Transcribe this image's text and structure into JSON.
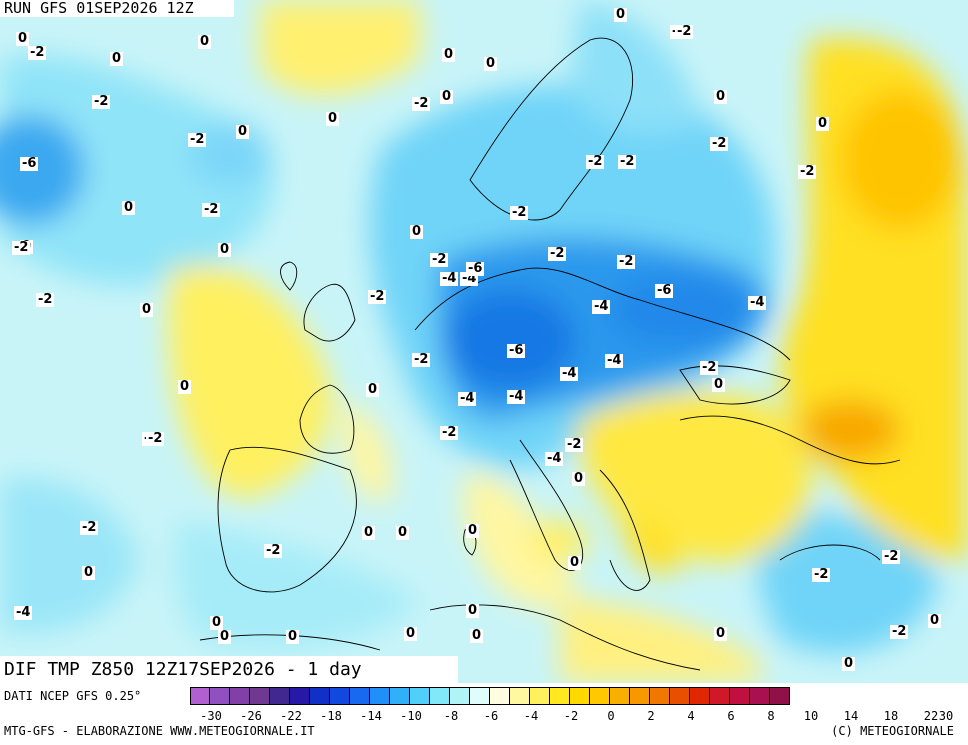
{
  "run_title": "RUN GFS 01SEP2026 12Z",
  "var_title": "DIF TMP Z850 12Z17SEP2026 - 1 day",
  "source": "DATI NCEP GFS 0.25°",
  "credit_left": "MTG-GFS - ELABORAZIONE WWW.METEOGIORNALE.IT",
  "credit_right": "(C) METEOGIORNALE",
  "colorbar": {
    "colors": [
      "#b060d0",
      "#9050c0",
      "#8040a8",
      "#703890",
      "#402890",
      "#2818a8",
      "#1030c8",
      "#1048e0",
      "#1868f0",
      "#2090f8",
      "#30b0f8",
      "#50d0f8",
      "#80e8f8",
      "#b0f4f8",
      "#e0fcfc",
      "#fffce0",
      "#fff8a0",
      "#fff060",
      "#ffe820",
      "#ffd800",
      "#ffc800",
      "#f8b000",
      "#f89800",
      "#f07800",
      "#e85000",
      "#e02800",
      "#d01828",
      "#c01040",
      "#a81050",
      "#901048"
    ],
    "ticks": [
      "-30",
      "-26",
      "-22",
      "-18",
      "-14",
      "-10",
      "-8",
      "-6",
      "-4",
      "-2",
      "0",
      "2",
      "4",
      "6",
      "8",
      "10",
      "14",
      "18",
      "22",
      "30"
    ]
  },
  "labels": [
    {
      "t": "0"
    },
    {
      "t": "-2"
    },
    {
      "t": "0"
    },
    {
      "t": "0"
    },
    {
      "t": "-2"
    },
    {
      "t": "0"
    },
    {
      "t": "0"
    },
    {
      "t": "-2"
    },
    {
      "t": "0"
    },
    {
      "t": "-2"
    },
    {
      "t": "0"
    },
    {
      "t": "0"
    },
    {
      "t": "0"
    },
    {
      "t": "-2"
    },
    {
      "t": "0"
    },
    {
      "t": "-2"
    },
    {
      "t": "-2"
    },
    {
      "t": "0"
    },
    {
      "t": "-2"
    },
    {
      "t": "0"
    },
    {
      "t": "-6"
    },
    {
      "t": "0"
    },
    {
      "t": "-2"
    },
    {
      "t": "-2"
    },
    {
      "t": "-2"
    },
    {
      "t": "-2"
    },
    {
      "t": "-2"
    },
    {
      "t": "-4"
    },
    {
      "t": "0"
    },
    {
      "t": "-2"
    },
    {
      "t": "-2"
    },
    {
      "t": "-2"
    },
    {
      "t": "-6"
    },
    {
      "t": "-4"
    },
    {
      "t": "-2"
    },
    {
      "t": "-2"
    },
    {
      "t": "-4"
    },
    {
      "t": "-6"
    },
    {
      "t": "-4"
    },
    {
      "t": "0"
    },
    {
      "t": "-2"
    },
    {
      "t": "-4"
    },
    {
      "t": "-6"
    },
    {
      "t": "-2"
    },
    {
      "t": "-4"
    },
    {
      "t": "-4"
    },
    {
      "t": "0"
    },
    {
      "t": "0"
    },
    {
      "t": "-4"
    },
    {
      "t": "-4"
    },
    {
      "t": "-2"
    },
    {
      "t": "-2"
    },
    {
      "t": "0"
    },
    {
      "t": "-2"
    },
    {
      "t": "-4"
    },
    {
      "t": "0"
    },
    {
      "t": "0"
    },
    {
      "t": "0"
    },
    {
      "t": "-2"
    },
    {
      "t": "0"
    },
    {
      "t": "0"
    },
    {
      "t": "0"
    },
    {
      "t": "-2"
    },
    {
      "t": "0"
    },
    {
      "t": "-2"
    },
    {
      "t": "-2"
    },
    {
      "t": "0"
    },
    {
      "t": "0"
    },
    {
      "t": "0"
    },
    {
      "t": "0"
    },
    {
      "t": "0"
    },
    {
      "t": "-2"
    },
    {
      "t": "0"
    },
    {
      "t": "0"
    },
    {
      "t": "0"
    },
    {
      "t": "-2"
    },
    {
      "t": "0"
    }
  ]
}
